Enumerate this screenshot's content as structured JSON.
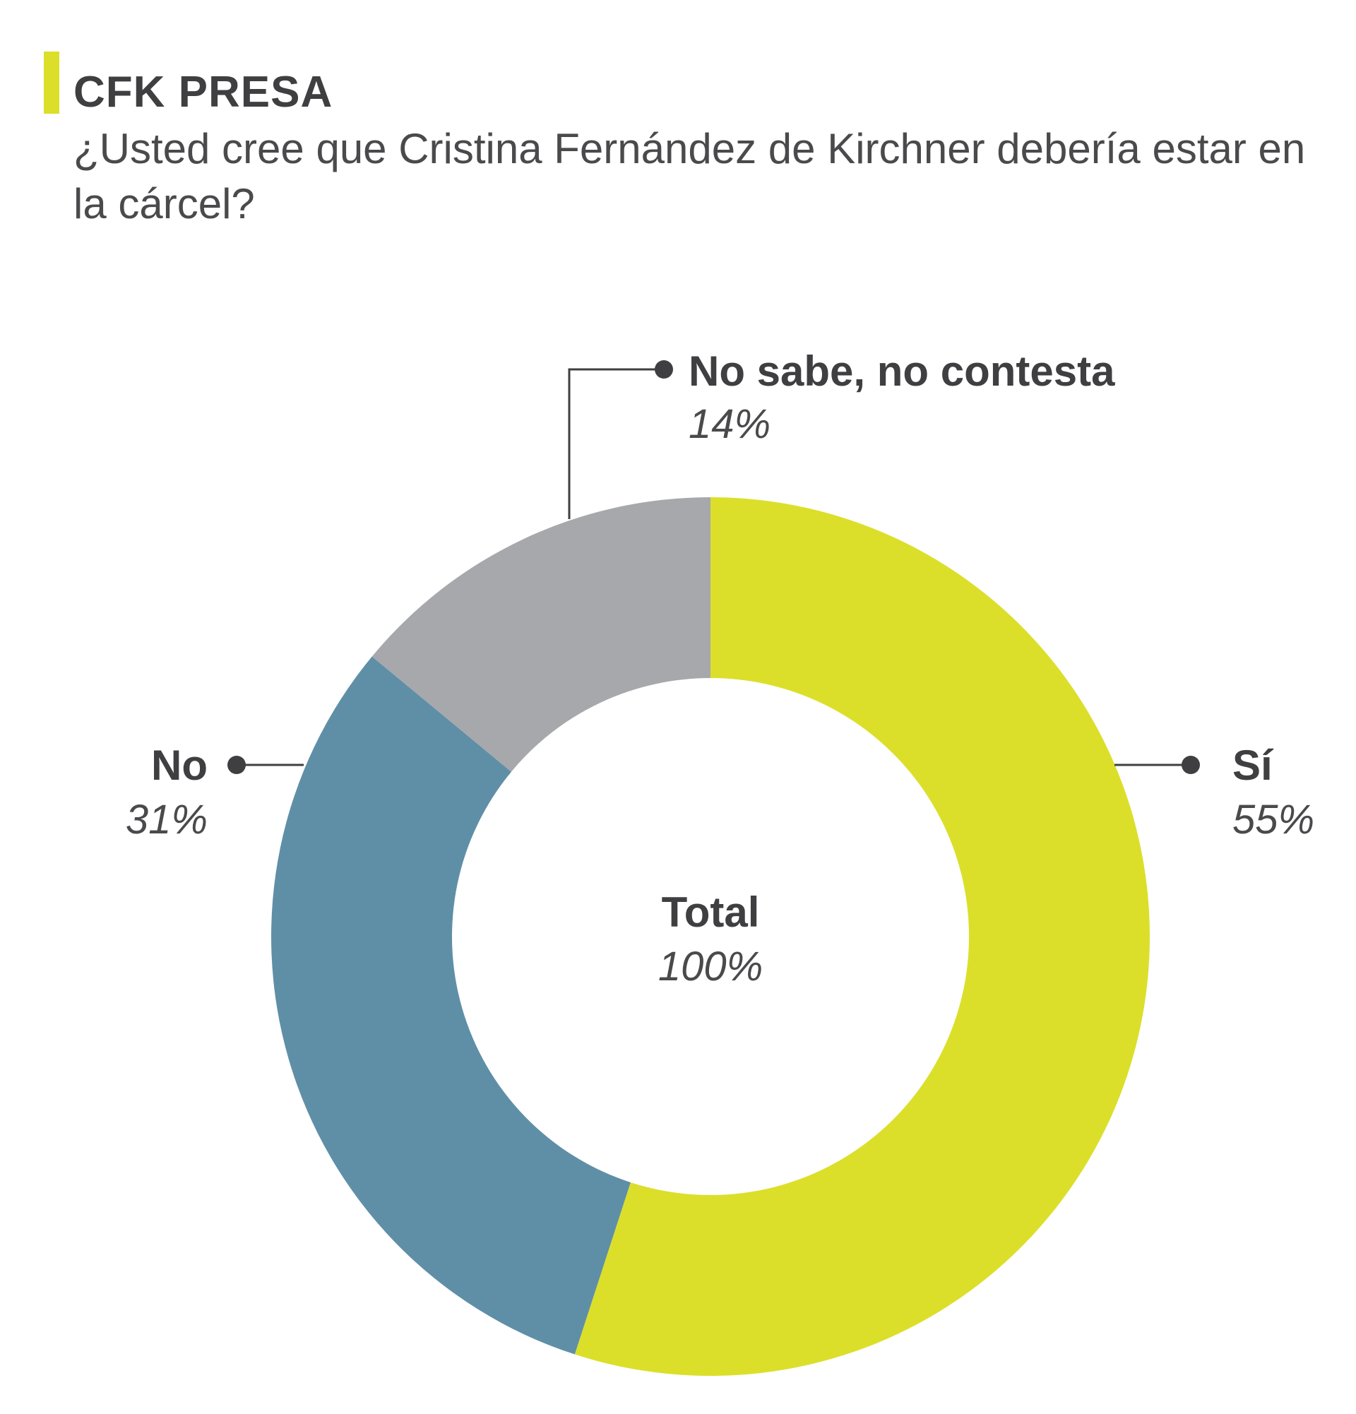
{
  "title": "CFK PRESA",
  "subtitle": "¿Usted cree que Cristina Fernández de Kirchner debería estar en la cárcel?",
  "colors": {
    "accent": "#dbdf2a",
    "si": "#dbdf2a",
    "no": "#5f8fa7",
    "nsnc": "#a7a8ab",
    "leader": "#3f3f41"
  },
  "chart_data": {
    "type": "pie",
    "donut": true,
    "slices": [
      {
        "label": "Sí",
        "value": 55,
        "value_label": "55%",
        "color": "#dbdf2a"
      },
      {
        "label": "No",
        "value": 31,
        "value_label": "31%",
        "color": "#5f8fa7"
      },
      {
        "label": "No sabe, no contesta",
        "value": 14,
        "value_label": "14%",
        "color": "#a7a8ab"
      }
    ],
    "center_label": "Total",
    "center_value": "100%",
    "start": "top",
    "direction": "clockwise"
  }
}
